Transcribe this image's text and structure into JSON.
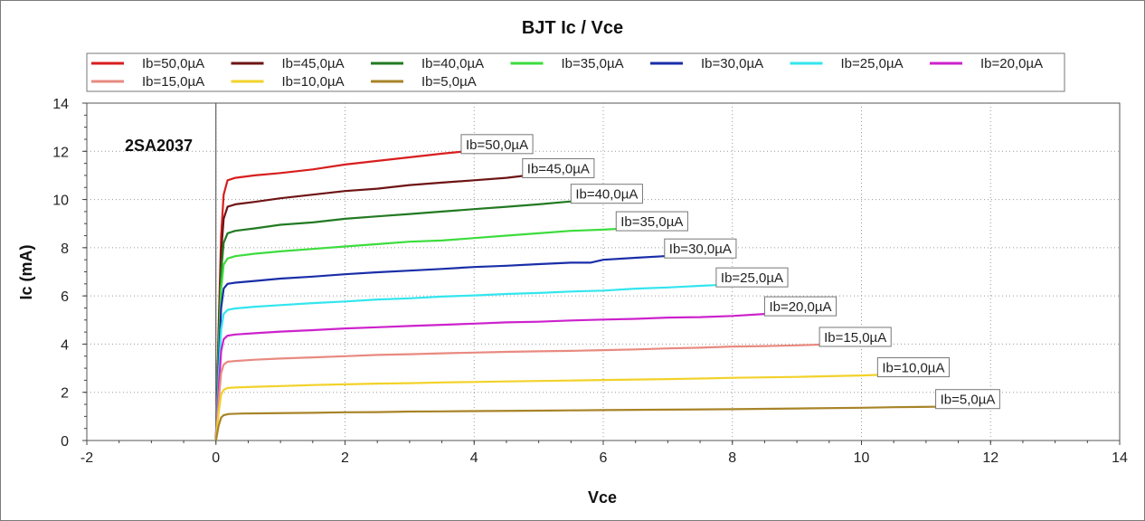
{
  "chart_data": {
    "type": "line",
    "title": "BJT Ic / Vce",
    "xlabel": "Vce",
    "ylabel": "Ic (mA)",
    "xlim": [
      -2,
      14
    ],
    "ylim": [
      0,
      14
    ],
    "x_ticks": [
      -2,
      0,
      2,
      4,
      6,
      8,
      10,
      12,
      14
    ],
    "y_ticks": [
      0,
      2,
      4,
      6,
      8,
      10,
      12,
      14
    ],
    "grid": true,
    "legend_position": "top",
    "annotation": "2SA2037",
    "series": [
      {
        "name": "Ib=50,0µA",
        "color": "#d81e1e",
        "label_box": "Ib=50,0µA",
        "points": [
          [
            0,
            0
          ],
          [
            0.04,
            4.5
          ],
          [
            0.08,
            8.5
          ],
          [
            0.12,
            10.2
          ],
          [
            0.18,
            10.8
          ],
          [
            0.3,
            10.9
          ],
          [
            0.6,
            11.0
          ],
          [
            1.0,
            11.1
          ],
          [
            1.5,
            11.25
          ],
          [
            2.0,
            11.45
          ],
          [
            2.5,
            11.6
          ],
          [
            3.0,
            11.75
          ],
          [
            3.5,
            11.9
          ],
          [
            3.8,
            11.98
          ]
        ]
      },
      {
        "name": "Ib=45,0µA",
        "color": "#6e1414",
        "label_box": "Ib=45,0µA",
        "points": [
          [
            0,
            0
          ],
          [
            0.04,
            4.2
          ],
          [
            0.08,
            7.8
          ],
          [
            0.12,
            9.2
          ],
          [
            0.18,
            9.7
          ],
          [
            0.3,
            9.8
          ],
          [
            0.6,
            9.9
          ],
          [
            1.0,
            10.05
          ],
          [
            1.5,
            10.2
          ],
          [
            2.0,
            10.35
          ],
          [
            2.5,
            10.45
          ],
          [
            3.0,
            10.6
          ],
          [
            3.5,
            10.7
          ],
          [
            4.0,
            10.8
          ],
          [
            4.5,
            10.9
          ],
          [
            4.75,
            10.98
          ]
        ]
      },
      {
        "name": "Ib=40,0µA",
        "color": "#227a22",
        "label_box": "Ib=40,0µA",
        "points": [
          [
            0,
            0
          ],
          [
            0.04,
            3.8
          ],
          [
            0.08,
            7.0
          ],
          [
            0.12,
            8.2
          ],
          [
            0.18,
            8.6
          ],
          [
            0.3,
            8.7
          ],
          [
            0.6,
            8.8
          ],
          [
            1.0,
            8.95
          ],
          [
            1.5,
            9.05
          ],
          [
            2.0,
            9.2
          ],
          [
            2.5,
            9.3
          ],
          [
            3.0,
            9.4
          ],
          [
            3.5,
            9.5
          ],
          [
            4.0,
            9.6
          ],
          [
            4.5,
            9.7
          ],
          [
            5.0,
            9.8
          ],
          [
            5.5,
            9.92
          ]
        ]
      },
      {
        "name": "Ib=35,0µA",
        "color": "#3ddc3d",
        "label_box": "Ib=35,0µA",
        "points": [
          [
            0,
            0
          ],
          [
            0.04,
            3.5
          ],
          [
            0.08,
            6.3
          ],
          [
            0.12,
            7.3
          ],
          [
            0.18,
            7.55
          ],
          [
            0.3,
            7.65
          ],
          [
            0.6,
            7.75
          ],
          [
            1.0,
            7.85
          ],
          [
            1.5,
            7.95
          ],
          [
            2.0,
            8.05
          ],
          [
            2.5,
            8.15
          ],
          [
            3.0,
            8.25
          ],
          [
            3.5,
            8.3
          ],
          [
            4.0,
            8.4
          ],
          [
            4.5,
            8.5
          ],
          [
            5.0,
            8.6
          ],
          [
            5.5,
            8.7
          ],
          [
            6.0,
            8.75
          ],
          [
            6.2,
            8.78
          ]
        ]
      },
      {
        "name": "Ib=30,0µA",
        "color": "#1a2ea8",
        "label_box": "Ib=30,0µA",
        "points": [
          [
            0,
            0
          ],
          [
            0.04,
            3.0
          ],
          [
            0.08,
            5.5
          ],
          [
            0.12,
            6.3
          ],
          [
            0.18,
            6.5
          ],
          [
            0.3,
            6.55
          ],
          [
            0.6,
            6.62
          ],
          [
            1.0,
            6.72
          ],
          [
            1.5,
            6.8
          ],
          [
            2.0,
            6.9
          ],
          [
            2.5,
            6.98
          ],
          [
            3.0,
            7.05
          ],
          [
            3.5,
            7.12
          ],
          [
            4.0,
            7.2
          ],
          [
            4.5,
            7.25
          ],
          [
            5.0,
            7.32
          ],
          [
            5.5,
            7.38
          ],
          [
            5.8,
            7.38
          ],
          [
            6.0,
            7.5
          ],
          [
            6.5,
            7.58
          ],
          [
            6.95,
            7.65
          ]
        ]
      },
      {
        "name": "Ib=25,0µA",
        "color": "#33e5ee",
        "label_box": "Ib=25,0µA",
        "points": [
          [
            0,
            0
          ],
          [
            0.04,
            2.5
          ],
          [
            0.08,
            4.6
          ],
          [
            0.12,
            5.25
          ],
          [
            0.18,
            5.42
          ],
          [
            0.3,
            5.48
          ],
          [
            0.6,
            5.55
          ],
          [
            1.0,
            5.62
          ],
          [
            1.5,
            5.7
          ],
          [
            2.0,
            5.77
          ],
          [
            2.5,
            5.85
          ],
          [
            3.0,
            5.9
          ],
          [
            3.5,
            5.97
          ],
          [
            4.0,
            6.02
          ],
          [
            4.5,
            6.08
          ],
          [
            5.0,
            6.12
          ],
          [
            5.5,
            6.18
          ],
          [
            6.0,
            6.22
          ],
          [
            6.5,
            6.3
          ],
          [
            7.0,
            6.35
          ],
          [
            7.5,
            6.42
          ],
          [
            7.75,
            6.45
          ]
        ]
      },
      {
        "name": "Ib=20,0µA",
        "color": "#cc22cc",
        "label_box": "Ib=20,0µA",
        "points": [
          [
            0,
            0
          ],
          [
            0.04,
            2.0
          ],
          [
            0.08,
            3.7
          ],
          [
            0.12,
            4.2
          ],
          [
            0.18,
            4.35
          ],
          [
            0.3,
            4.4
          ],
          [
            0.6,
            4.45
          ],
          [
            1.0,
            4.52
          ],
          [
            1.5,
            4.58
          ],
          [
            2.0,
            4.65
          ],
          [
            2.5,
            4.7
          ],
          [
            3.0,
            4.75
          ],
          [
            3.5,
            4.8
          ],
          [
            4.0,
            4.85
          ],
          [
            4.5,
            4.9
          ],
          [
            5.0,
            4.93
          ],
          [
            5.5,
            4.98
          ],
          [
            6.0,
            5.02
          ],
          [
            6.5,
            5.05
          ],
          [
            7.0,
            5.1
          ],
          [
            7.5,
            5.12
          ],
          [
            8.0,
            5.17
          ],
          [
            8.5,
            5.25
          ]
        ]
      },
      {
        "name": "Ib=15,0µA",
        "color": "#e88a80",
        "label_box": "Ib=15,0µA",
        "points": [
          [
            0,
            0
          ],
          [
            0.04,
            1.6
          ],
          [
            0.08,
            2.8
          ],
          [
            0.12,
            3.15
          ],
          [
            0.18,
            3.27
          ],
          [
            0.3,
            3.3
          ],
          [
            0.6,
            3.35
          ],
          [
            1.0,
            3.4
          ],
          [
            1.5,
            3.45
          ],
          [
            2.0,
            3.5
          ],
          [
            2.5,
            3.55
          ],
          [
            3.0,
            3.58
          ],
          [
            3.5,
            3.62
          ],
          [
            4.0,
            3.65
          ],
          [
            4.5,
            3.68
          ],
          [
            5.0,
            3.7
          ],
          [
            5.5,
            3.72
          ],
          [
            6.0,
            3.75
          ],
          [
            6.5,
            3.78
          ],
          [
            7.0,
            3.82
          ],
          [
            7.5,
            3.85
          ],
          [
            8.0,
            3.9
          ],
          [
            8.5,
            3.92
          ],
          [
            9.0,
            3.95
          ],
          [
            9.35,
            3.98
          ]
        ]
      },
      {
        "name": "Ib=10,0µA",
        "color": "#f2d22a",
        "label_box": "Ib=10,0µA",
        "points": [
          [
            0,
            0
          ],
          [
            0.04,
            1.1
          ],
          [
            0.08,
            1.9
          ],
          [
            0.12,
            2.1
          ],
          [
            0.18,
            2.18
          ],
          [
            0.3,
            2.2
          ],
          [
            0.6,
            2.23
          ],
          [
            1.0,
            2.26
          ],
          [
            1.5,
            2.3
          ],
          [
            2.0,
            2.33
          ],
          [
            2.5,
            2.36
          ],
          [
            3.0,
            2.38
          ],
          [
            3.5,
            2.41
          ],
          [
            4.0,
            2.43
          ],
          [
            4.5,
            2.45
          ],
          [
            5.0,
            2.47
          ],
          [
            5.5,
            2.49
          ],
          [
            6.0,
            2.51
          ],
          [
            6.5,
            2.53
          ],
          [
            7.0,
            2.55
          ],
          [
            7.5,
            2.57
          ],
          [
            8.0,
            2.6
          ],
          [
            8.5,
            2.62
          ],
          [
            9.0,
            2.64
          ],
          [
            9.5,
            2.67
          ],
          [
            10.0,
            2.7
          ],
          [
            10.25,
            2.72
          ]
        ]
      },
      {
        "name": "Ib=5,0µA",
        "color": "#a88428",
        "label_box": "Ib=5,0µA",
        "points": [
          [
            0,
            0
          ],
          [
            0.04,
            0.6
          ],
          [
            0.08,
            0.95
          ],
          [
            0.12,
            1.05
          ],
          [
            0.2,
            1.1
          ],
          [
            0.4,
            1.12
          ],
          [
            0.8,
            1.13
          ],
          [
            1.5,
            1.15
          ],
          [
            2.0,
            1.17
          ],
          [
            2.5,
            1.18
          ],
          [
            3.0,
            1.2
          ],
          [
            3.5,
            1.21
          ],
          [
            4.0,
            1.22
          ],
          [
            5.0,
            1.24
          ],
          [
            5.5,
            1.25
          ],
          [
            6.0,
            1.26
          ],
          [
            7.0,
            1.28
          ],
          [
            8.0,
            1.3
          ],
          [
            9.0,
            1.33
          ],
          [
            10.0,
            1.36
          ],
          [
            10.5,
            1.38
          ],
          [
            11.15,
            1.4
          ]
        ]
      }
    ]
  }
}
